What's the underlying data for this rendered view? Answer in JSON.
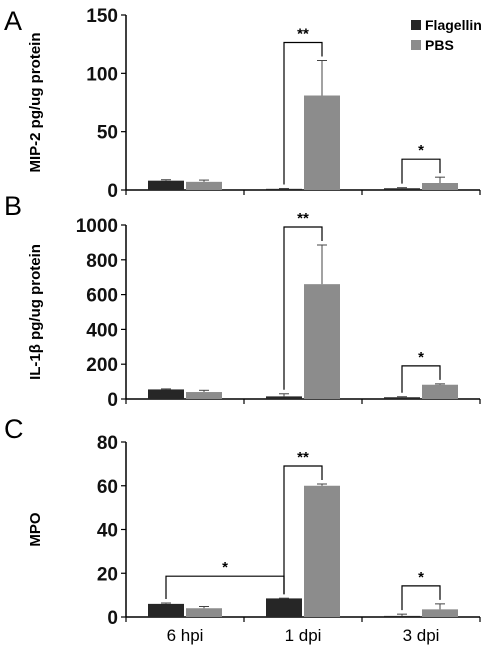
{
  "chart_data": [
    {
      "type": "bar",
      "panel": "A",
      "ylabel": "MIP-2 pg/ug protein",
      "ylim": [
        0,
        150
      ],
      "yticks": [
        0,
        50,
        100,
        150
      ],
      "categories": [
        "6 hpi",
        "1 dpi",
        "3 dpi"
      ],
      "series": [
        {
          "name": "Flagellin",
          "values": [
            8,
            1,
            1.5
          ],
          "errors": [
            0.8,
            0.3,
            0.5
          ]
        },
        {
          "name": "PBS",
          "values": [
            7,
            81,
            6
          ],
          "errors": [
            1.5,
            30,
            5
          ]
        }
      ],
      "significance": [
        {
          "category": 1,
          "label": "**"
        },
        {
          "category": 2,
          "label": "*"
        }
      ],
      "legend": "top-right"
    },
    {
      "type": "bar",
      "panel": "B",
      "ylabel": "IL-1β pg/ug protein",
      "ylim": [
        0,
        1000
      ],
      "yticks": [
        0,
        200,
        400,
        600,
        800,
        1000
      ],
      "categories": [
        "6 hpi",
        "1 dpi",
        "3 dpi"
      ],
      "series": [
        {
          "name": "Flagellin",
          "values": [
            55,
            15,
            10
          ],
          "errors": [
            3,
            15,
            3
          ]
        },
        {
          "name": "PBS",
          "values": [
            40,
            660,
            82
          ],
          "errors": [
            10,
            225,
            5
          ]
        }
      ],
      "significance": [
        {
          "category": 1,
          "label": "**"
        },
        {
          "category": 2,
          "label": "*"
        }
      ]
    },
    {
      "type": "bar",
      "panel": "C",
      "ylabel": "MPO",
      "ylim": [
        0,
        80
      ],
      "yticks": [
        0,
        20,
        40,
        60,
        80
      ],
      "categories": [
        "6 hpi",
        "1 dpi",
        "3 dpi"
      ],
      "series": [
        {
          "name": "Flagellin",
          "values": [
            6,
            8.5,
            0.5
          ],
          "errors": [
            0.4,
            0.1,
            0.8
          ]
        },
        {
          "name": "PBS",
          "values": [
            4,
            60,
            3.5
          ],
          "errors": [
            0.8,
            0.8,
            2.5
          ]
        }
      ],
      "significance": [
        {
          "category": 1,
          "label": "**"
        },
        {
          "category": 2,
          "label": "*"
        },
        {
          "between": "6 hpi Flagellin vs 1 dpi Flagellin",
          "label": "*"
        }
      ]
    }
  ],
  "colors": {
    "Flagellin": "#262626",
    "PBS": "#8c8c8c",
    "axis": "#000000"
  }
}
